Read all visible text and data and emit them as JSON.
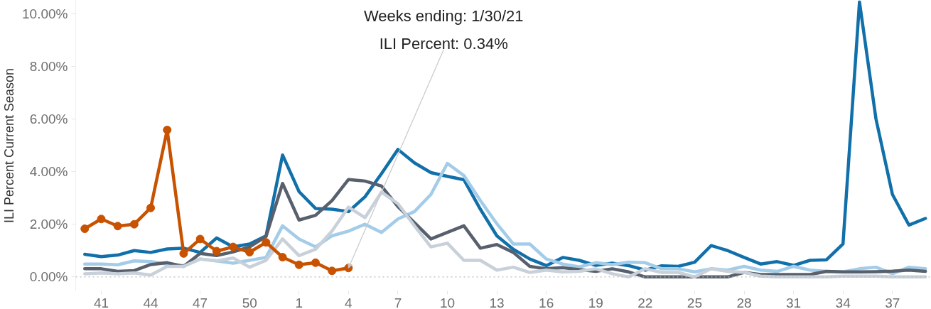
{
  "chart_data": {
    "type": "line",
    "ylabel": "ILI Percent Current Season",
    "categories": [
      null,
      "41",
      null,
      null,
      "44",
      null,
      null,
      "47",
      null,
      null,
      "50",
      null,
      null,
      "1",
      null,
      null,
      "4",
      null,
      null,
      "7",
      null,
      null,
      "10",
      null,
      null,
      "13",
      null,
      null,
      "16",
      null,
      null,
      "19",
      null,
      null,
      "22",
      null,
      null,
      "25",
      null,
      null,
      "28",
      null,
      null,
      "31",
      null,
      null,
      "34",
      null,
      null,
      "37",
      null,
      null
    ],
    "ylim": [
      -0.53,
      10.5
    ],
    "yticks": [
      {
        "value": 0,
        "label": "0.00%"
      },
      {
        "value": 2,
        "label": "2.00%"
      },
      {
        "value": 4,
        "label": "4.00%"
      },
      {
        "value": 6,
        "label": "6.00%"
      },
      {
        "value": 8,
        "label": "8.00%"
      },
      {
        "value": 10,
        "label": "10.00%"
      }
    ],
    "grid": false,
    "line_style": "solid",
    "ref_lines": [
      {
        "axis": "y",
        "value": 0,
        "color": "#bbbbbb",
        "line_style": "dotted"
      }
    ],
    "annotations": [
      {
        "text": "Weeks ending: 1/30/21\nILI Percent: 0.34%",
        "x": "4",
        "y": 0.34
      }
    ],
    "series": [
      {
        "color": "#1170aa",
        "marker": "none",
        "values": [
          0.86,
          0.77,
          0.83,
          1.0,
          0.93,
          1.06,
          1.09,
          0.93,
          1.48,
          1.14,
          1.25,
          1.56,
          4.63,
          3.24,
          2.6,
          2.57,
          2.48,
          3.04,
          3.92,
          4.84,
          4.33,
          3.96,
          3.82,
          3.69,
          2.57,
          1.56,
          1.05,
          0.68,
          0.43,
          0.74,
          0.63,
          0.44,
          0.52,
          0.43,
          0.26,
          0.42,
          0.4,
          0.56,
          1.19,
          1.0,
          0.74,
          0.49,
          0.58,
          0.44,
          0.63,
          0.65,
          1.25,
          10.44,
          6.0,
          3.13,
          1.97,
          2.22
        ]
      },
      {
        "color": "#a3cce9",
        "marker": "none",
        "values": [
          0.49,
          0.49,
          0.46,
          0.61,
          0.58,
          0.49,
          0.43,
          0.68,
          0.61,
          0.52,
          0.63,
          0.74,
          1.94,
          1.44,
          1.14,
          1.56,
          1.74,
          2.0,
          1.69,
          2.2,
          2.48,
          3.13,
          4.31,
          3.85,
          2.9,
          2.02,
          1.25,
          1.25,
          0.68,
          0.49,
          0.38,
          0.54,
          0.47,
          0.56,
          0.54,
          0.31,
          0.31,
          0.19,
          0.31,
          0.26,
          0.4,
          0.26,
          0.21,
          0.4,
          0.26,
          0.21,
          0.19,
          0.31,
          0.37,
          0.12,
          0.37,
          0.31
        ]
      },
      {
        "color": "#57606c",
        "marker": "none",
        "values": [
          0.31,
          0.31,
          0.21,
          0.24,
          0.47,
          0.54,
          0.4,
          0.89,
          0.81,
          0.95,
          1.14,
          1.54,
          3.55,
          2.16,
          2.34,
          2.9,
          3.7,
          3.64,
          3.45,
          2.67,
          2.06,
          1.44,
          1.69,
          1.94,
          1.09,
          1.23,
          0.93,
          0.4,
          0.31,
          0.35,
          0.28,
          0.21,
          0.31,
          0.19,
          0.0,
          0.0,
          0.0,
          0.0,
          0.0,
          0.0,
          0.17,
          0.09,
          0.09,
          0.09,
          0.09,
          0.21,
          0.19,
          0.19,
          0.2,
          0.22,
          0.26,
          0.21
        ]
      },
      {
        "color": "#c8d0d9",
        "marker": "none",
        "values": [
          0.12,
          0.15,
          0.12,
          0.15,
          0.07,
          0.4,
          0.4,
          0.68,
          0.61,
          0.72,
          0.37,
          0.63,
          1.44,
          0.81,
          1.05,
          1.74,
          2.65,
          2.25,
          3.22,
          2.78,
          1.94,
          1.14,
          1.28,
          0.63,
          0.63,
          0.26,
          0.37,
          0.17,
          0.26,
          0.19,
          0.21,
          0.31,
          0.12,
          0.0,
          0.31,
          0.17,
          0.17,
          0.0,
          0.31,
          0.21,
          0.17,
          0.03,
          0.0,
          0.0,
          0.0,
          0.0,
          0.03,
          0.03,
          0.03,
          0.0,
          0.0,
          0.0
        ]
      },
      {
        "color": "#c85200",
        "marker": "circle",
        "values": [
          1.83,
          2.2,
          1.93,
          2.0,
          2.62,
          5.58,
          0.89,
          1.44,
          0.98,
          1.14,
          0.94,
          1.31,
          0.75,
          0.46,
          0.54,
          0.23,
          0.34,
          null,
          null,
          null,
          null,
          null,
          null,
          null,
          null,
          null,
          null,
          null,
          null,
          null,
          null,
          null,
          null,
          null,
          null,
          null,
          null,
          null,
          null,
          null,
          null,
          null,
          null,
          null,
          null,
          null,
          null,
          null,
          null,
          null,
          null,
          null
        ]
      }
    ]
  }
}
